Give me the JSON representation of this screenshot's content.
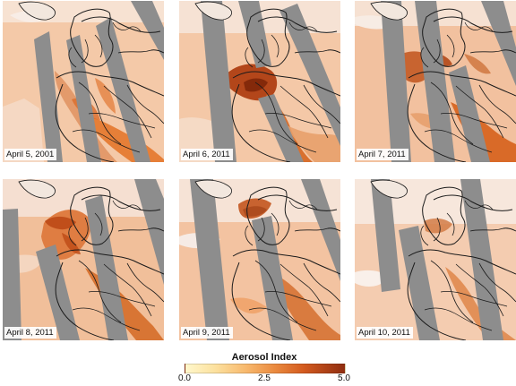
{
  "map": {
    "tiles": [
      {
        "label": "April 5, 2001"
      },
      {
        "label": "April 6, 2011"
      },
      {
        "label": "April 7, 2011"
      },
      {
        "label": "April 8, 2011"
      },
      {
        "label": "April 9, 2011"
      },
      {
        "label": "April 10, 2011"
      }
    ],
    "legend": {
      "title": "Aerosol Index",
      "min": "0.0",
      "mid": "2.5",
      "max": "5.0"
    },
    "colors": {
      "low": "#fff7cc",
      "mid": "#f8b96d",
      "high": "#8f2d10",
      "no_data": "#8d8d8d",
      "outline": "#1b1b1b"
    }
  }
}
